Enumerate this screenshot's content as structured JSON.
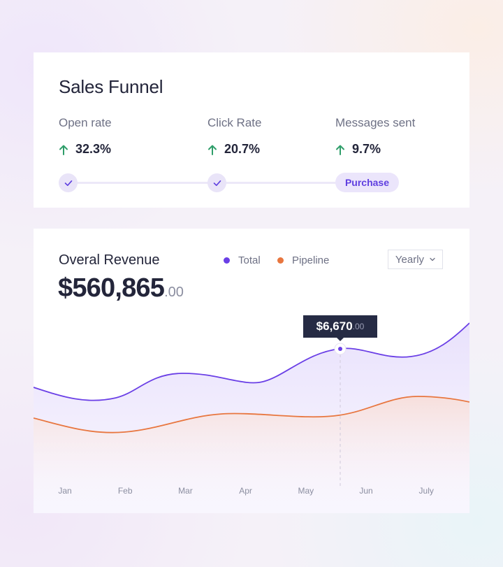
{
  "sales_funnel": {
    "title": "Sales Funnel",
    "metrics": [
      {
        "label": "Open rate",
        "value": "32.3%",
        "trend": "up"
      },
      {
        "label": "Click Rate",
        "value": "20.7%",
        "trend": "up"
      },
      {
        "label": "Messages sent",
        "value": "9.7%",
        "trend": "up"
      }
    ],
    "steps": [
      {
        "state": "completed"
      },
      {
        "state": "completed"
      },
      {
        "state": "current",
        "label": "Purchase"
      }
    ]
  },
  "revenue": {
    "title": "Overal Revenue",
    "amount": "$560,865",
    "amount_cents": ".00",
    "period_select": {
      "selected": "Yearly"
    },
    "tooltip": {
      "value": "$6,670",
      "cents": ".00"
    }
  },
  "colors": {
    "accent": "#6a3fe6",
    "pipeline": "#e8763f",
    "trend_up": "#2f9e6a",
    "dark": "#262b44"
  },
  "icons": [
    "arrow-up-icon",
    "check-icon",
    "chevron-down-icon"
  ],
  "chart_data": {
    "type": "line",
    "x": [
      "Jan",
      "Feb",
      "Mar",
      "Apr",
      "May",
      "Jun",
      "July"
    ],
    "series": [
      {
        "name": "Total",
        "color": "#6a3fe6"
      },
      {
        "name": "Pipeline",
        "color": "#e8763f"
      }
    ],
    "highlight": {
      "series": "Total",
      "position": "between May and Jun",
      "label": "$6,670.00"
    },
    "grid": false,
    "legend": "top"
  }
}
